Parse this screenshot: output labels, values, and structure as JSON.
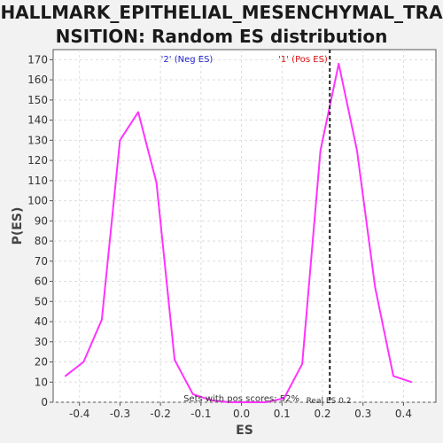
{
  "chart_data": {
    "type": "line",
    "title": "HALLMARK_EPITHELIAL_MESENCHYMAL_TRANSITION: Random ES distribution",
    "xlabel": "ES",
    "ylabel": "P(ES)",
    "xlim": [
      -0.465,
      0.48
    ],
    "ylim": [
      0,
      175
    ],
    "xticks": [
      -0.4,
      -0.3,
      -0.2,
      -0.1,
      0.0,
      0.1,
      0.2,
      0.3,
      0.4
    ],
    "xtick_labels": [
      "-0.4",
      "-0.3",
      "-0.2",
      "-0.1",
      "0.0",
      "0.1",
      "0.2",
      "0.3",
      "0.4"
    ],
    "yticks": [
      0,
      10,
      20,
      30,
      40,
      50,
      60,
      70,
      80,
      90,
      100,
      110,
      120,
      130,
      140,
      150,
      160,
      170
    ],
    "ytick_labels": [
      "0",
      "10",
      "20",
      "30",
      "40",
      "50",
      "60",
      "70",
      "80",
      "90",
      "100",
      "110",
      "120",
      "130",
      "140",
      "150",
      "160",
      "170"
    ],
    "grid": true,
    "series": [
      {
        "color": "#ff33ff",
        "x": [
          -0.435,
          -0.39,
          -0.345,
          -0.3,
          -0.255,
          -0.21,
          -0.165,
          -0.12,
          -0.075,
          -0.03,
          0.015,
          0.06,
          0.105,
          0.15,
          0.195,
          0.24,
          0.285,
          0.33,
          0.375,
          0.42
        ],
        "y": [
          13,
          20,
          41,
          130,
          144,
          109,
          21,
          4,
          1,
          0,
          0,
          0,
          2,
          19,
          125,
          168,
          125,
          57,
          13,
          10
        ]
      }
    ],
    "legend_neg": {
      "text": "'2' (Neg ES)",
      "color": "#2222cc"
    },
    "legend_pos": {
      "text": "'1' (Pos ES)",
      "color": "#dd1111"
    },
    "real_es": {
      "value": 0.218,
      "label": "Real ES 0.2"
    },
    "pos_scores_text": "Sets with pos scores: 52%"
  }
}
